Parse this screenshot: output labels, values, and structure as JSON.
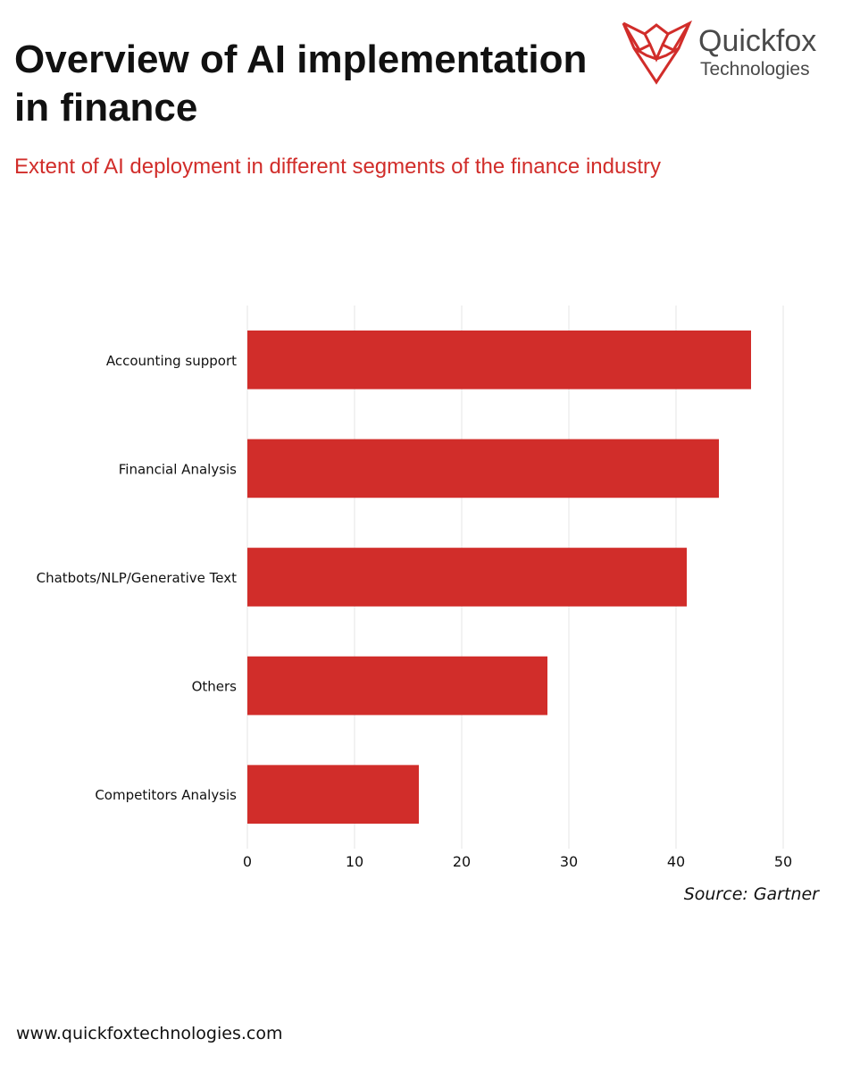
{
  "header": {
    "title": "Overview of AI implementation in finance",
    "subtitle": "Extent of AI deployment in different segments of the finance industry"
  },
  "logo": {
    "name": "Quickfox",
    "tagline": "Technologies"
  },
  "colors": {
    "accent": "#d12d2a",
    "bar": "#d12d2a",
    "gridline": "#e4e4e4",
    "text": "#111111",
    "logo_text": "#4a4a4a"
  },
  "icons": {
    "brand_mark": "fox-head-logo-icon"
  },
  "chart_data": {
    "type": "bar",
    "orientation": "horizontal",
    "categories": [
      "Accounting support",
      "Financial Analysis",
      "Chatbots/NLP/Generative Text",
      "Others",
      "Competitors Analysis"
    ],
    "values": [
      47,
      44,
      41,
      28,
      16
    ],
    "xlim": [
      0,
      50
    ],
    "xticks": [
      0,
      10,
      20,
      30,
      40,
      50
    ],
    "title": "",
    "xlabel": "",
    "ylabel": "",
    "grid": "vertical",
    "legend": "none"
  },
  "footer": {
    "source": "Source: Gartner",
    "website": "www.quickfoxtechnologies.com"
  }
}
